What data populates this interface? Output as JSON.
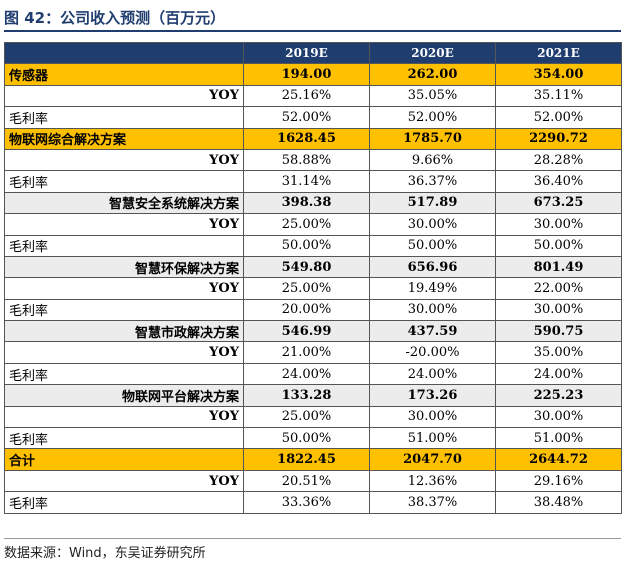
{
  "title": "图 42：公司收入预测（百万元）",
  "columns": [
    "2019E",
    "2020E",
    "2021E"
  ],
  "rows": [
    {
      "label": "传感器",
      "style": "hl",
      "align": "left",
      "values": [
        "194.00",
        "262.00",
        "354.00"
      ]
    },
    {
      "label": "YOY",
      "style": "plain",
      "align": "yoy",
      "values": [
        "25.16%",
        "35.05%",
        "35.11%"
      ]
    },
    {
      "label": "毛利率",
      "style": "plain",
      "align": "left",
      "values": [
        "52.00%",
        "52.00%",
        "52.00%"
      ]
    },
    {
      "label": "物联网综合解决方案",
      "style": "hl",
      "align": "left",
      "values": [
        "1628.45",
        "1785.70",
        "2290.72"
      ]
    },
    {
      "label": "YOY",
      "style": "plain",
      "align": "yoy",
      "values": [
        "58.88%",
        "9.66%",
        "28.28%"
      ]
    },
    {
      "label": "毛利率",
      "style": "plain",
      "align": "left",
      "values": [
        "31.14%",
        "36.37%",
        "36.40%"
      ]
    },
    {
      "label": "智慧安全系统解决方案",
      "style": "seg",
      "align": "right",
      "values": [
        "398.38",
        "517.89",
        "673.25"
      ]
    },
    {
      "label": "YOY",
      "style": "plain",
      "align": "yoy",
      "values": [
        "25.00%",
        "30.00%",
        "30.00%"
      ]
    },
    {
      "label": "毛利率",
      "style": "plain",
      "align": "left",
      "values": [
        "50.00%",
        "50.00%",
        "50.00%"
      ]
    },
    {
      "label": "智慧环保解决方案",
      "style": "seg",
      "align": "right",
      "values": [
        "549.80",
        "656.96",
        "801.49"
      ]
    },
    {
      "label": "YOY",
      "style": "plain",
      "align": "yoy",
      "values": [
        "25.00%",
        "19.49%",
        "22.00%"
      ]
    },
    {
      "label": "毛利率",
      "style": "plain",
      "align": "left",
      "values": [
        "20.00%",
        "30.00%",
        "30.00%"
      ]
    },
    {
      "label": "智慧市政解决方案",
      "style": "seg",
      "align": "right",
      "values": [
        "546.99",
        "437.59",
        "590.75"
      ]
    },
    {
      "label": "YOY",
      "style": "plain",
      "align": "yoy",
      "values": [
        "21.00%",
        "-20.00%",
        "35.00%"
      ]
    },
    {
      "label": "毛利率",
      "style": "plain",
      "align": "left",
      "values": [
        "24.00%",
        "24.00%",
        "24.00%"
      ]
    },
    {
      "label": "物联网平台解决方案",
      "style": "seg",
      "align": "right",
      "values": [
        "133.28",
        "173.26",
        "225.23"
      ]
    },
    {
      "label": "YOY",
      "style": "plain",
      "align": "yoy",
      "values": [
        "25.00%",
        "30.00%",
        "30.00%"
      ]
    },
    {
      "label": "毛利率",
      "style": "plain",
      "align": "left",
      "values": [
        "50.00%",
        "51.00%",
        "51.00%"
      ]
    },
    {
      "label": "合计",
      "style": "hl",
      "align": "left",
      "values": [
        "1822.45",
        "2047.70",
        "2644.72"
      ]
    },
    {
      "label": "YOY",
      "style": "plain",
      "align": "yoy",
      "values": [
        "20.51%",
        "12.36%",
        "29.16%"
      ]
    },
    {
      "label": "毛利率",
      "style": "plain",
      "align": "left",
      "values": [
        "33.36%",
        "38.37%",
        "38.48%"
      ]
    }
  ],
  "source": "数据来源：Wind，东吴证券研究所",
  "colors": {
    "header_bg": "#1f3d6e",
    "highlight": "#ffc000",
    "segment_bg": "#ececec"
  }
}
